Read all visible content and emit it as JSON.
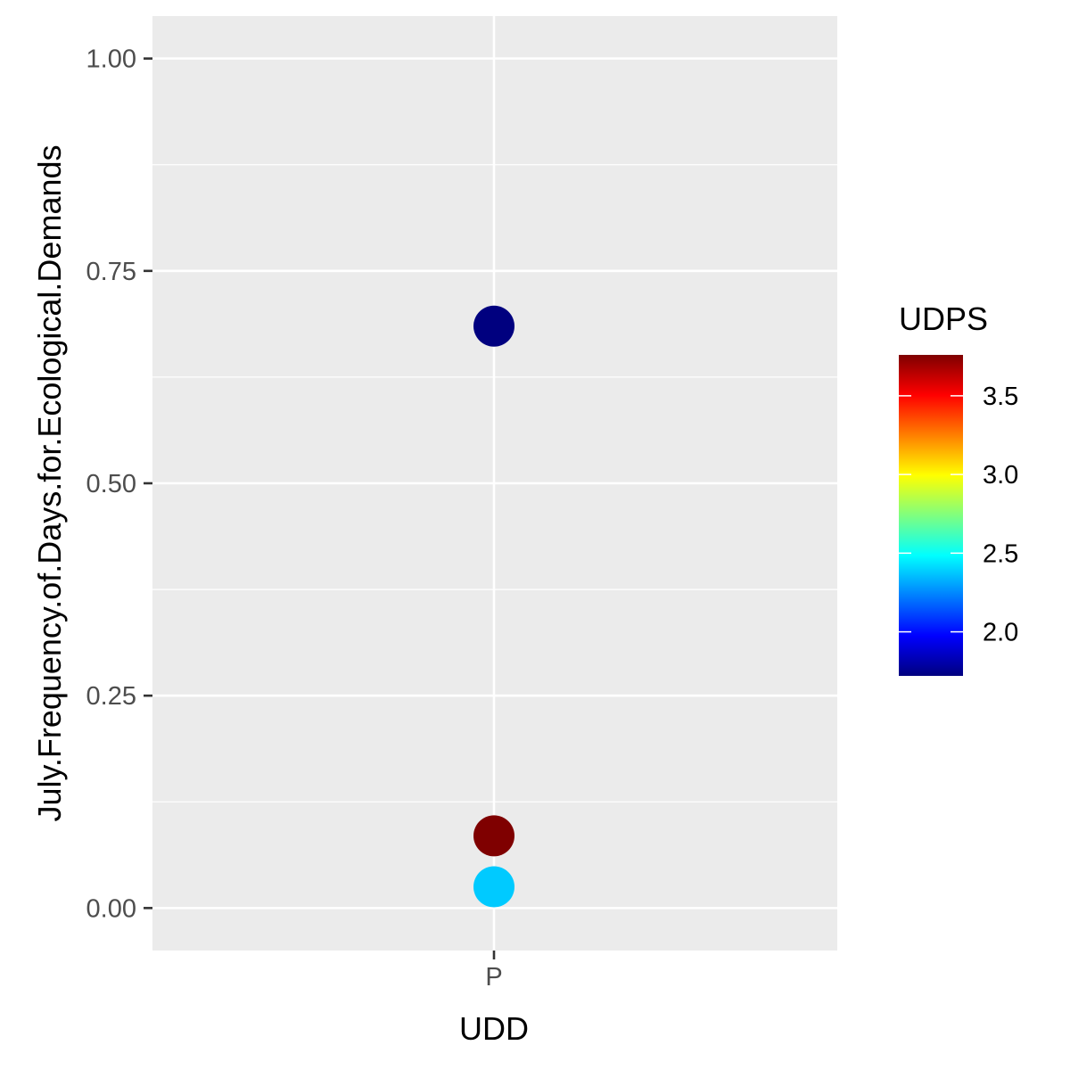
{
  "chart_data": {
    "type": "scatter",
    "xlabel": "UDD",
    "ylabel": "July.Frequency.of.Days.for.Ecological.Demands",
    "categories": [
      "P"
    ],
    "ylim": [
      -0.05,
      1.05
    ],
    "yticks": [
      0,
      0.25,
      0.5,
      0.75,
      1
    ],
    "ytick_labels": [
      "0.00",
      "0.25",
      "0.50",
      "0.75",
      "1.00"
    ],
    "points": [
      {
        "x": "P",
        "y": 0.685,
        "color_value": 1.72
      },
      {
        "x": "P",
        "y": 0.085,
        "color_value": 3.76
      },
      {
        "x": "P",
        "y": 0.025,
        "color_value": 2.38
      }
    ],
    "legend": {
      "title": "UDPS",
      "range": [
        1.72,
        3.76
      ],
      "ticks": [
        2.0,
        2.5,
        3.0,
        3.5
      ],
      "tick_labels": [
        "2.0",
        "2.5",
        "3.0",
        "3.5"
      ],
      "placement": "right"
    },
    "colors": {
      "panel_background": "#ebebeb",
      "gridline": "#ffffff",
      "colormap": [
        "#00007f",
        "#0000ff",
        "#007fff",
        "#00ffff",
        "#7fff7f",
        "#ffff00",
        "#ff7f00",
        "#ff0000",
        "#7f0000"
      ]
    },
    "grid": true
  }
}
